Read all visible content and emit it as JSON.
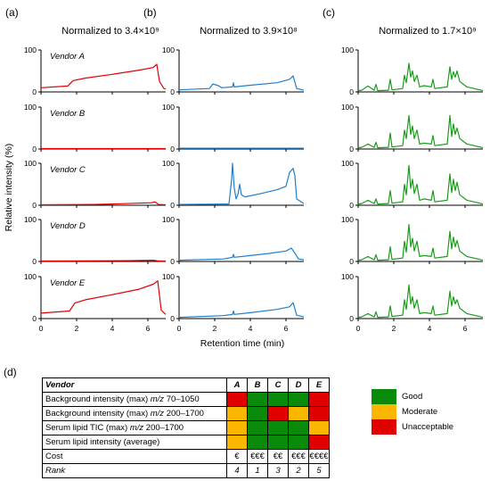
{
  "chart_data": {
    "type": "line",
    "panels": [
      {
        "label": "(a)",
        "title": "Normalized to 3.4×10⁹",
        "color": "#e00000"
      },
      {
        "label": "(b)",
        "title": "Normalized to 3.9×10⁸",
        "color": "#1f7fce"
      },
      {
        "label": "(c)",
        "title": "Normalized to 1.7×10⁹",
        "color": "#1c9a1c"
      }
    ],
    "rows": [
      "Vendor A",
      "Vendor B",
      "Vendor C",
      "Vendor D",
      "Vendor E"
    ],
    "ylabel": "Relative intensity (%)",
    "xlabel": "Retention time (min)",
    "y_ticks": [
      "0",
      "100"
    ],
    "x_ticks": [
      "0",
      "2",
      "4",
      "6"
    ],
    "xlim": [
      0,
      7
    ],
    "ylim": [
      0,
      100
    ],
    "series": {
      "a": [
        [
          [
            0,
            10
          ],
          [
            1.5,
            14
          ],
          [
            1.8,
            27
          ],
          [
            2.5,
            33
          ],
          [
            4,
            42
          ],
          [
            5.5,
            52
          ],
          [
            6.3,
            58
          ],
          [
            6.5,
            66
          ],
          [
            6.65,
            25
          ],
          [
            6.9,
            8
          ],
          [
            7,
            7
          ]
        ],
        [
          [
            0,
            1
          ],
          [
            7,
            1
          ]
        ],
        [
          [
            0,
            1
          ],
          [
            3,
            2
          ],
          [
            4,
            3
          ],
          [
            6.2,
            6
          ],
          [
            6.4,
            8
          ],
          [
            6.6,
            2
          ],
          [
            7,
            1
          ]
        ],
        [
          [
            0,
            1
          ],
          [
            5,
            2
          ],
          [
            6.3,
            3
          ],
          [
            6.6,
            1
          ],
          [
            7,
            1
          ]
        ],
        [
          [
            0,
            13
          ],
          [
            1.6,
            18
          ],
          [
            1.9,
            37
          ],
          [
            2.5,
            45
          ],
          [
            4,
            57
          ],
          [
            5.5,
            70
          ],
          [
            6.3,
            82
          ],
          [
            6.55,
            90
          ],
          [
            6.75,
            20
          ],
          [
            7,
            10
          ]
        ]
      ],
      "b": [
        [
          [
            0,
            5
          ],
          [
            1.7,
            8
          ],
          [
            1.9,
            19
          ],
          [
            2.2,
            15
          ],
          [
            2.4,
            10
          ],
          [
            3,
            12
          ],
          [
            3.05,
            22
          ],
          [
            3.1,
            12
          ],
          [
            4,
            16
          ],
          [
            5.5,
            22
          ],
          [
            6.2,
            30
          ],
          [
            6.4,
            38
          ],
          [
            6.6,
            8
          ],
          [
            7,
            4
          ]
        ],
        [
          [
            0,
            2
          ],
          [
            7,
            2
          ]
        ],
        [
          [
            0,
            2
          ],
          [
            2.8,
            3
          ],
          [
            2.95,
            62
          ],
          [
            3.0,
            100
          ],
          [
            3.1,
            40
          ],
          [
            3.2,
            15
          ],
          [
            3.3,
            25
          ],
          [
            3.4,
            50
          ],
          [
            3.5,
            25
          ],
          [
            3.7,
            20
          ],
          [
            4.5,
            27
          ],
          [
            5.5,
            37
          ],
          [
            6.0,
            45
          ],
          [
            6.2,
            78
          ],
          [
            6.4,
            88
          ],
          [
            6.5,
            70
          ],
          [
            6.6,
            15
          ],
          [
            7,
            4
          ]
        ],
        [
          [
            0,
            3
          ],
          [
            2.5,
            6
          ],
          [
            3,
            10
          ],
          [
            3.05,
            17
          ],
          [
            3.1,
            10
          ],
          [
            4,
            14
          ],
          [
            5,
            19
          ],
          [
            6.0,
            25
          ],
          [
            6.3,
            32
          ],
          [
            6.5,
            20
          ],
          [
            6.7,
            6
          ],
          [
            7,
            4
          ]
        ],
        [
          [
            0,
            3
          ],
          [
            2.5,
            7
          ],
          [
            3.0,
            10
          ],
          [
            3.05,
            18
          ],
          [
            3.1,
            10
          ],
          [
            4,
            14
          ],
          [
            5.5,
            22
          ],
          [
            6.2,
            28
          ],
          [
            6.4,
            38
          ],
          [
            6.6,
            8
          ],
          [
            7,
            4
          ]
        ]
      ],
      "c": [
        [
          [
            0,
            3
          ],
          [
            0.2,
            4
          ],
          [
            0.55,
            14
          ],
          [
            0.9,
            4
          ],
          [
            1,
            18
          ],
          [
            1.1,
            3
          ],
          [
            1.7,
            4
          ],
          [
            1.8,
            30
          ],
          [
            1.9,
            5
          ],
          [
            2.5,
            8
          ],
          [
            2.6,
            40
          ],
          [
            2.7,
            22
          ],
          [
            2.85,
            68
          ],
          [
            2.95,
            35
          ],
          [
            3.05,
            50
          ],
          [
            3.15,
            25
          ],
          [
            3.3,
            40
          ],
          [
            3.45,
            12
          ],
          [
            3.7,
            15
          ],
          [
            4.1,
            12
          ],
          [
            4.2,
            30
          ],
          [
            4.3,
            8
          ],
          [
            5,
            12
          ],
          [
            5.15,
            60
          ],
          [
            5.25,
            30
          ],
          [
            5.35,
            48
          ],
          [
            5.45,
            35
          ],
          [
            5.55,
            50
          ],
          [
            5.7,
            25
          ],
          [
            6.1,
            12
          ],
          [
            6.5,
            8
          ],
          [
            7,
            3
          ]
        ],
        [
          [
            0,
            3
          ],
          [
            0.2,
            4
          ],
          [
            0.55,
            12
          ],
          [
            0.9,
            4
          ],
          [
            1,
            16
          ],
          [
            1.1,
            3
          ],
          [
            1.7,
            4
          ],
          [
            1.8,
            38
          ],
          [
            1.9,
            5
          ],
          [
            2.5,
            8
          ],
          [
            2.6,
            45
          ],
          [
            2.7,
            25
          ],
          [
            2.85,
            80
          ],
          [
            2.95,
            35
          ],
          [
            3.05,
            55
          ],
          [
            3.15,
            25
          ],
          [
            3.3,
            45
          ],
          [
            3.45,
            12
          ],
          [
            3.7,
            14
          ],
          [
            4.1,
            12
          ],
          [
            4.2,
            32
          ],
          [
            4.3,
            8
          ],
          [
            5,
            12
          ],
          [
            5.15,
            80
          ],
          [
            5.25,
            30
          ],
          [
            5.35,
            60
          ],
          [
            5.45,
            35
          ],
          [
            5.55,
            50
          ],
          [
            5.7,
            25
          ],
          [
            6.1,
            12
          ],
          [
            6.5,
            8
          ],
          [
            7,
            3
          ]
        ],
        [
          [
            0,
            3
          ],
          [
            0.2,
            4
          ],
          [
            0.55,
            12
          ],
          [
            0.9,
            4
          ],
          [
            1,
            15
          ],
          [
            1.1,
            3
          ],
          [
            1.7,
            4
          ],
          [
            1.8,
            35
          ],
          [
            1.9,
            5
          ],
          [
            2.5,
            8
          ],
          [
            2.6,
            50
          ],
          [
            2.7,
            25
          ],
          [
            2.85,
            95
          ],
          [
            2.95,
            40
          ],
          [
            3.05,
            62
          ],
          [
            3.15,
            28
          ],
          [
            3.3,
            50
          ],
          [
            3.45,
            12
          ],
          [
            3.7,
            15
          ],
          [
            4.1,
            12
          ],
          [
            4.2,
            35
          ],
          [
            4.3,
            8
          ],
          [
            5,
            12
          ],
          [
            5.15,
            75
          ],
          [
            5.25,
            30
          ],
          [
            5.35,
            62
          ],
          [
            5.45,
            35
          ],
          [
            5.55,
            55
          ],
          [
            5.7,
            25
          ],
          [
            6.1,
            12
          ],
          [
            6.5,
            8
          ],
          [
            7,
            3
          ]
        ],
        [
          [
            0,
            3
          ],
          [
            0.2,
            4
          ],
          [
            0.55,
            12
          ],
          [
            0.9,
            4
          ],
          [
            1,
            16
          ],
          [
            1.1,
            3
          ],
          [
            1.7,
            4
          ],
          [
            1.8,
            35
          ],
          [
            1.9,
            5
          ],
          [
            2.5,
            8
          ],
          [
            2.6,
            48
          ],
          [
            2.7,
            22
          ],
          [
            2.85,
            88
          ],
          [
            2.95,
            35
          ],
          [
            3.05,
            55
          ],
          [
            3.15,
            25
          ],
          [
            3.3,
            48
          ],
          [
            3.45,
            12
          ],
          [
            3.7,
            14
          ],
          [
            4.1,
            12
          ],
          [
            4.2,
            32
          ],
          [
            4.3,
            8
          ],
          [
            5,
            12
          ],
          [
            5.15,
            72
          ],
          [
            5.25,
            30
          ],
          [
            5.35,
            58
          ],
          [
            5.45,
            35
          ],
          [
            5.55,
            50
          ],
          [
            5.7,
            25
          ],
          [
            6.1,
            12
          ],
          [
            6.5,
            8
          ],
          [
            7,
            3
          ]
        ],
        [
          [
            0,
            3
          ],
          [
            0.2,
            4
          ],
          [
            0.55,
            12
          ],
          [
            0.9,
            4
          ],
          [
            1,
            16
          ],
          [
            1.1,
            3
          ],
          [
            1.7,
            4
          ],
          [
            1.8,
            30
          ],
          [
            1.9,
            5
          ],
          [
            2.5,
            8
          ],
          [
            2.6,
            45
          ],
          [
            2.7,
            22
          ],
          [
            2.85,
            80
          ],
          [
            2.95,
            35
          ],
          [
            3.05,
            52
          ],
          [
            3.15,
            25
          ],
          [
            3.3,
            45
          ],
          [
            3.45,
            12
          ],
          [
            3.7,
            14
          ],
          [
            4.1,
            12
          ],
          [
            4.2,
            30
          ],
          [
            4.3,
            8
          ],
          [
            5,
            12
          ],
          [
            5.15,
            65
          ],
          [
            5.25,
            30
          ],
          [
            5.35,
            52
          ],
          [
            5.45,
            35
          ],
          [
            5.55,
            45
          ],
          [
            5.7,
            25
          ],
          [
            6.1,
            12
          ],
          [
            6.5,
            8
          ],
          [
            7,
            3
          ]
        ]
      ]
    }
  },
  "table": {
    "label": "(d)",
    "header": "Vendor",
    "vendors": [
      "A",
      "B",
      "C",
      "D",
      "E"
    ],
    "rows": [
      {
        "pre": "Background intensity (max) ",
        "mz": "m/z",
        "post": " 70–1050",
        "ratings": [
          "red",
          "green",
          "green",
          "green",
          "red"
        ]
      },
      {
        "pre": "Background intensity (max) ",
        "mz": "m/z",
        "post": " 200–1700",
        "ratings": [
          "yellow",
          "green",
          "red",
          "yellow",
          "red"
        ]
      },
      {
        "pre": "Serum lipid TIC (max) ",
        "mz": "m/z",
        "post": " 200–1700",
        "ratings": [
          "yellow",
          "green",
          "green",
          "green",
          "yellow"
        ]
      },
      {
        "pre": "Serum lipid intensity (average)",
        "mz": "",
        "post": "",
        "ratings": [
          "yellow",
          "green",
          "green",
          "green",
          "red"
        ]
      }
    ],
    "cost_label": "Cost",
    "cost": [
      "€",
      "€€€",
      "€€",
      "€€€",
      "€€€€"
    ],
    "rank_label": "Rank",
    "rank": [
      "4",
      "1",
      "3",
      "2",
      "5"
    ]
  },
  "legend": [
    {
      "label": "Good",
      "color": "green"
    },
    {
      "label": "Moderate",
      "color": "yellow"
    },
    {
      "label": "Unacceptable",
      "color": "red"
    }
  ],
  "colors": {
    "green": "#0a8a0a",
    "yellow": "#fbb600",
    "red": "#e00000"
  }
}
